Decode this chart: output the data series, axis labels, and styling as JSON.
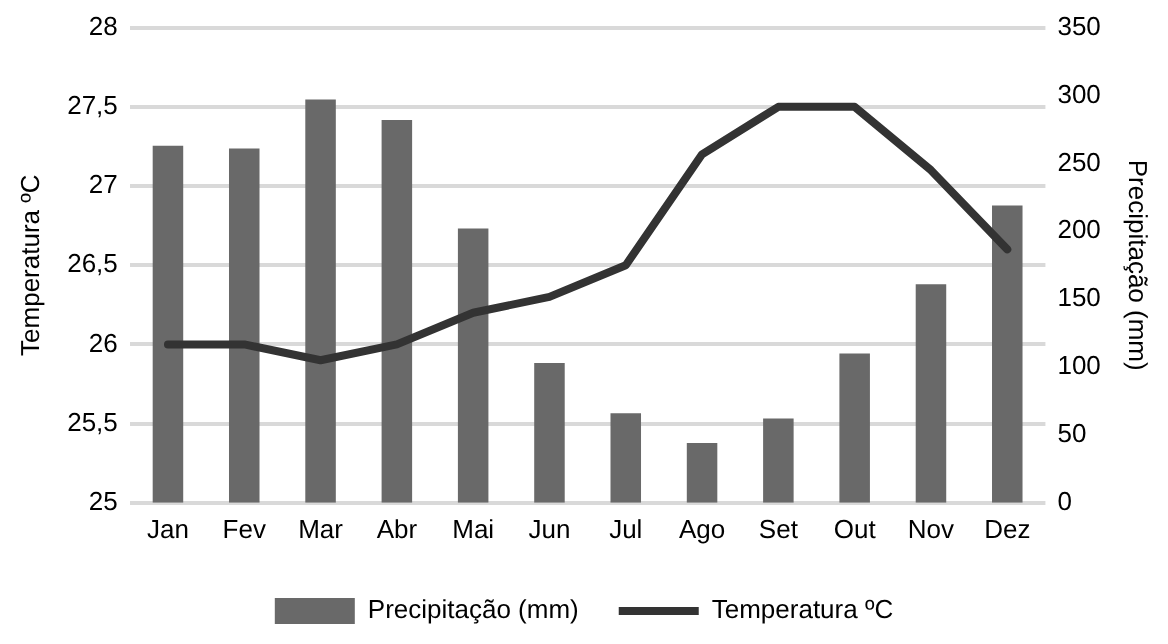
{
  "chart_data": {
    "type": "bar",
    "categories": [
      "Jan",
      "Fev",
      "Mar",
      "Abr",
      "Mai",
      "Jun",
      "Jul",
      "Ago",
      "Set",
      "Out",
      "Nov",
      "Dez"
    ],
    "series": [
      {
        "name": "Precipitação (mm)",
        "axis": "y2",
        "color": "#696969",
        "values": [
          263,
          261,
          297,
          282,
          202,
          103,
          66,
          44,
          62,
          110,
          161,
          219
        ]
      },
      {
        "name": "Temperatura ºC",
        "type": "line",
        "color": "#333333",
        "values": [
          26.0,
          26.0,
          25.9,
          26.0,
          26.2,
          26.3,
          26.5,
          27.2,
          27.5,
          27.5,
          27.1,
          26.6
        ]
      }
    ],
    "ylabel": "Temperatura ºC",
    "y2label": "Precipitação (mm)",
    "ylim": [
      25,
      28
    ],
    "yticks": [
      25,
      {
        "value": 25.5,
        "label": "25,5"
      },
      26,
      {
        "value": 26.5,
        "label": "26,5"
      },
      27,
      {
        "value": 27.5,
        "label": "27,5"
      },
      28
    ],
    "y2lim": [
      0,
      350
    ],
    "y2ticks": [
      0,
      50,
      100,
      150,
      200,
      250,
      300,
      350
    ],
    "grid": "y",
    "legend": "bottom",
    "marker": "none",
    "line_style": "solid"
  }
}
